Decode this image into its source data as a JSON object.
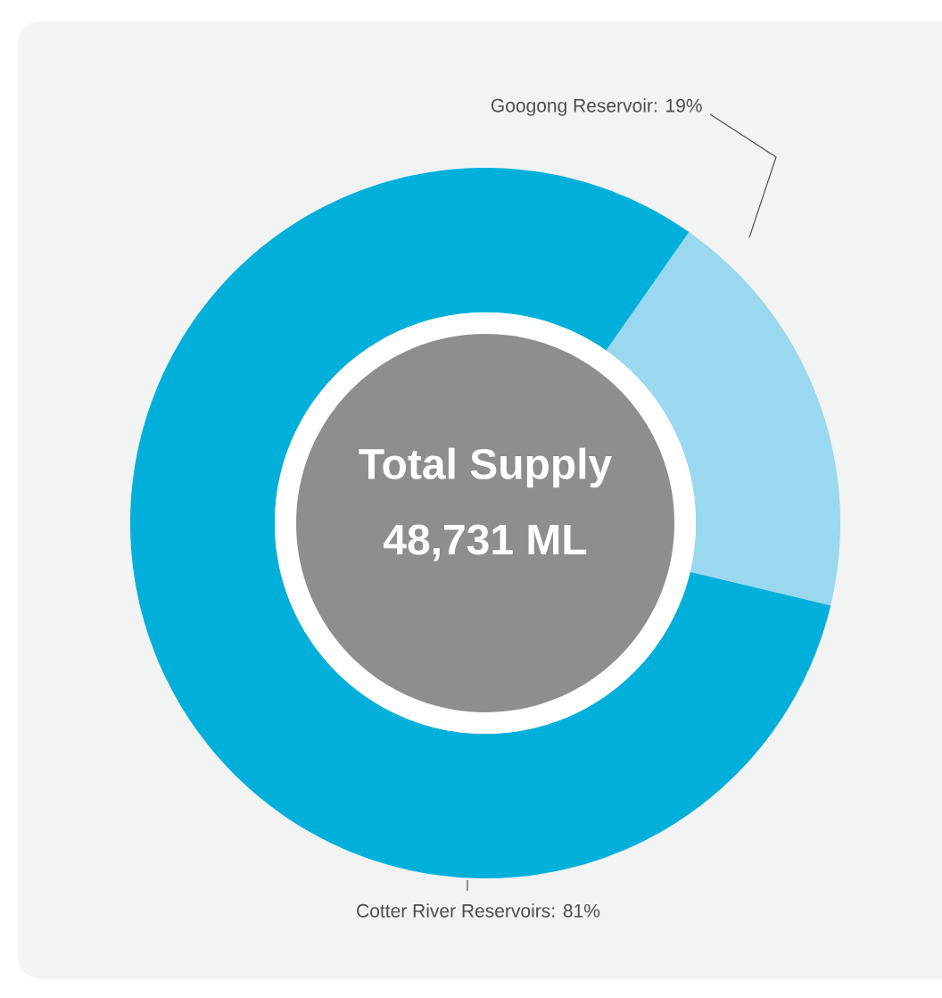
{
  "chart_data": {
    "type": "donut",
    "categories": [
      "Googong Reservoir: 19%",
      "Cotter River Reservoirs: 81%"
    ],
    "values": [
      19,
      81
    ],
    "colors": [
      "#9ad8ef",
      "#00b0da"
    ],
    "annotations": [
      "Total Supply",
      "48,731 ML"
    ]
  }
}
